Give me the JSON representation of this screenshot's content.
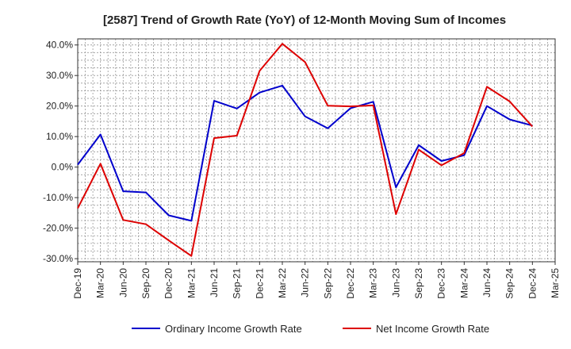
{
  "chart_data": {
    "type": "line",
    "title": "[2587]  Trend of Growth Rate (YoY) of 12-Month Moving Sum of Incomes",
    "xlabel": "",
    "ylabel": "",
    "x_tick_labels": [
      "Dec-19",
      "Mar-20",
      "Jun-20",
      "Sep-20",
      "Dec-20",
      "Mar-21",
      "Jun-21",
      "Sep-21",
      "Dec-21",
      "Mar-22",
      "Jun-22",
      "Sep-22",
      "Dec-22",
      "Mar-23",
      "Jun-23",
      "Sep-23",
      "Dec-23",
      "Mar-24",
      "Jun-24",
      "Sep-24",
      "Dec-24",
      "Mar-25"
    ],
    "y_tick_labels": [
      "40.0%",
      "30.0%",
      "20.0%",
      "10.0%",
      "0.0%",
      "-10.0%",
      "-20.0%",
      "-30.0%"
    ],
    "ylim": [
      -31,
      42
    ],
    "y_ticks": [
      40,
      30,
      20,
      10,
      0,
      -10,
      -20,
      -30
    ],
    "grid": true,
    "legend_position": "bottom",
    "colors": {
      "Ordinary Income Growth Rate": "#0000cc",
      "Net Income Growth Rate": "#dd0000"
    },
    "series": [
      {
        "name": "Ordinary Income Growth Rate",
        "color": "#0000cc",
        "values": [
          0.8,
          10.7,
          -7.9,
          -8.3,
          -15.8,
          -17.6,
          21.7,
          19.2,
          24.4,
          26.7,
          16.6,
          12.7,
          19.3,
          21.4,
          -6.6,
          7.2,
          2.0,
          3.9,
          20.0,
          15.6,
          13.6,
          null
        ]
      },
      {
        "name": "Net Income Growth Rate",
        "color": "#dd0000",
        "values": [
          -13.5,
          1.1,
          -17.3,
          -18.7,
          -24.0,
          -29.1,
          9.5,
          10.3,
          31.5,
          40.4,
          34.4,
          20.1,
          19.9,
          20.2,
          -15.4,
          5.7,
          0.6,
          4.6,
          26.3,
          21.5,
          13.3,
          null
        ]
      }
    ]
  }
}
